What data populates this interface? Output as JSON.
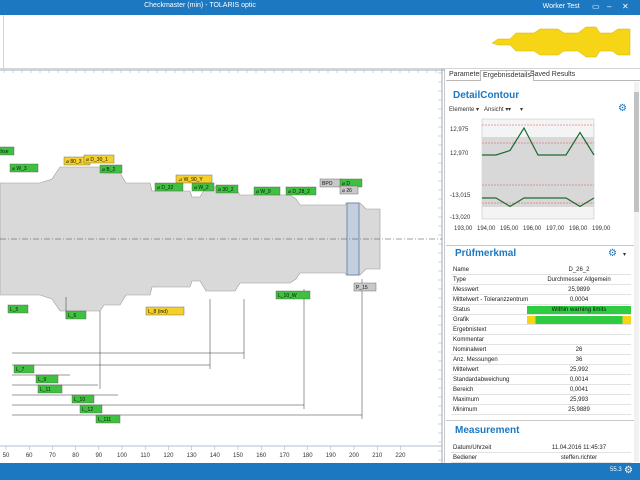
{
  "window": {
    "title": "Checkmaster (min) - TOLARIS optic",
    "user": "Worker Test",
    "colors": {
      "titlebar": "#1c78c0",
      "accent": "#1c78c0",
      "ok_green": "#2ecc40",
      "warn_yellow": "#f5d516",
      "label_green": "#40c040",
      "label_yellow": "#f5d02a"
    }
  },
  "statusbar": {
    "version": "55.3"
  },
  "drawing": {
    "ruler_labels": [
      "50",
      "60",
      "70",
      "80",
      "90",
      "100",
      "110",
      "120",
      "130",
      "140",
      "150",
      "160",
      "170",
      "180",
      "190",
      "200",
      "210",
      "220"
    ],
    "tags": [
      {
        "text": "chse",
        "color": "green"
      },
      {
        "text": "⌀ W_3",
        "color": "green"
      },
      {
        "text": "⌀ 80_3",
        "color": "yellow"
      },
      {
        "text": "⌀ D_30_1",
        "color": "yellow"
      },
      {
        "text": "⌀ B_2",
        "color": "green"
      },
      {
        "text": "⊿ W_90_Y",
        "color": "yellow"
      },
      {
        "text": "⌀ D_32",
        "color": "green"
      },
      {
        "text": "⌀ W_2",
        "color": "green"
      },
      {
        "text": "⌀ 30_2",
        "color": "green"
      },
      {
        "text": "⌀ W_9",
        "color": "green"
      },
      {
        "text": "⌀ D_28_2",
        "color": "green"
      },
      {
        "text": "BPO",
        "color": "grey"
      },
      {
        "text": "⌀ D",
        "color": "green"
      },
      {
        "text": "⌀ 26",
        "color": "grey"
      },
      {
        "text": "L_5",
        "color": "green"
      },
      {
        "text": "L_6",
        "color": "green"
      },
      {
        "text": "L_8 (ind)",
        "color": "yellow"
      },
      {
        "text": "L_10_W",
        "color": "green"
      },
      {
        "text": "P_15",
        "color": "grey"
      },
      {
        "text": "L_7",
        "color": "green"
      },
      {
        "text": "L_9",
        "color": "green"
      },
      {
        "text": "L_11",
        "color": "green"
      },
      {
        "text": "L_10",
        "color": "green"
      },
      {
        "text": "L_12",
        "color": "green"
      },
      {
        "text": "L_111",
        "color": "green"
      }
    ]
  },
  "panel": {
    "tabs": [
      "Parameter",
      "Ergebnisdetails",
      "Saved Results"
    ],
    "active_tab": "Ergebnisdetails",
    "detail": {
      "title": "DetailContour",
      "controls": [
        "Elemente ▾",
        "Ansicht ▾",
        "▾",
        "▾"
      ]
    },
    "pruef": {
      "title": "Prüfmerkmal",
      "rows": [
        {
          "k": "Name",
          "v": "D_26_2"
        },
        {
          "k": "Type",
          "v": "Durchmesser Allgemein"
        },
        {
          "k": "Messwert",
          "v": "25,9899"
        },
        {
          "k": "Mittelwert - Toleranzzentrum",
          "v": "0,0004"
        },
        {
          "k": "Status",
          "v": "Within warning limits"
        },
        {
          "k": "Grafik",
          "v": ""
        },
        {
          "k": "Ergebnistext",
          "v": ""
        },
        {
          "k": "Kommentar",
          "v": ""
        },
        {
          "k": "Nominalwert",
          "v": "26"
        },
        {
          "k": "Anz. Messungen",
          "v": "36"
        },
        {
          "k": "Mittelwert",
          "v": "25,992"
        },
        {
          "k": "Standardabweichung",
          "v": "0,0014"
        },
        {
          "k": "Bereich",
          "v": "0,0041"
        },
        {
          "k": "Maximum",
          "v": "25,993"
        },
        {
          "k": "Minimum",
          "v": "25,9889"
        }
      ]
    },
    "measurement": {
      "title": "Measurement",
      "rows": [
        {
          "k": "Datum/Uhrzeit",
          "v": "11.04.2016 11:45:37"
        },
        {
          "k": "Bediener",
          "v": "steffen.richter"
        }
      ]
    }
  },
  "chart_data": {
    "type": "line",
    "title": "",
    "xlabel": "",
    "ylabel": "",
    "x_ticks": [
      "193,00",
      "194,00",
      "195,00",
      "196,00",
      "197,00",
      "198,00",
      "199,00"
    ],
    "y_ticks": [
      "12,975",
      "12,970",
      "-13,015",
      "-13,020"
    ],
    "xlim": [
      193,
      199
    ],
    "series": [
      {
        "values": [
          12.972,
          12.972,
          12.973,
          12.978,
          12.972,
          12.972,
          12.972,
          12.977,
          12.972
        ]
      },
      {
        "values": [
          -13.017,
          -13.017,
          -13.019,
          -13.017,
          -13.017,
          -13.017,
          -13.017,
          -13.019,
          -13.017
        ]
      }
    ]
  }
}
